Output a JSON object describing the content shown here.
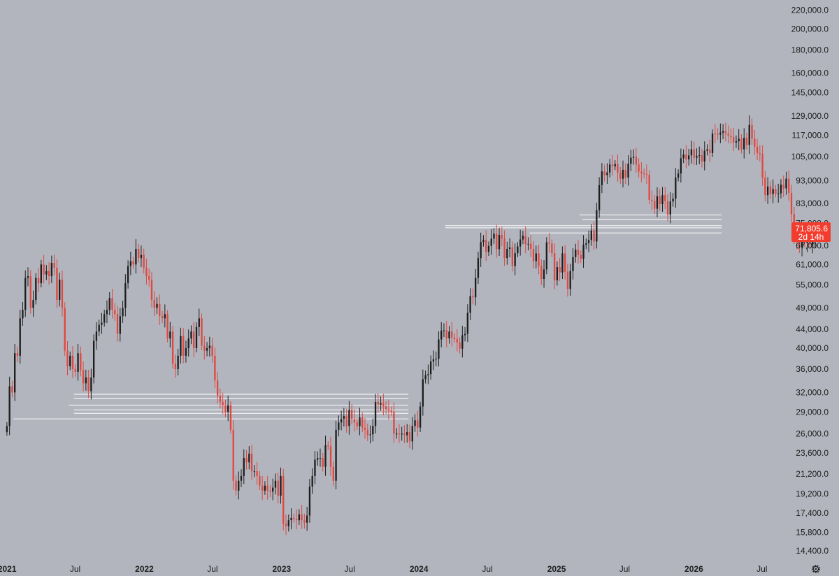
{
  "chart_data": {
    "type": "candlestick",
    "scale": "log",
    "colors": {
      "background": "#b2b5be",
      "up": "#1e1e1e",
      "down": "#e0473f",
      "level_line": "#ffffff",
      "price_tag": "#f23d2e",
      "text": "#1f1f1f"
    },
    "ylim": [
      13800,
      225000
    ],
    "x_range": [
      "2020-12-28",
      "2026-07-20"
    ],
    "y_ticks": [
      {
        "value": 220000,
        "label": "220,000.0"
      },
      {
        "value": 200000,
        "label": "200,000.0"
      },
      {
        "value": 180000,
        "label": "180,000.0"
      },
      {
        "value": 160000,
        "label": "160,000.0"
      },
      {
        "value": 145000,
        "label": "145,000.0"
      },
      {
        "value": 129000,
        "label": "129,000.0"
      },
      {
        "value": 117000,
        "label": "117,000.0"
      },
      {
        "value": 105000,
        "label": "105,000.0"
      },
      {
        "value": 93000,
        "label": "93,000.0"
      },
      {
        "value": 83000,
        "label": "83,000.0"
      },
      {
        "value": 75000,
        "label": "75,000.0"
      },
      {
        "value": 67000,
        "label": "67,000.0"
      },
      {
        "value": 61000,
        "label": "61,000.0"
      },
      {
        "value": 55000,
        "label": "55,000.0"
      },
      {
        "value": 49000,
        "label": "49,000.0"
      },
      {
        "value": 44000,
        "label": "44,000.0"
      },
      {
        "value": 40000,
        "label": "40,000.0"
      },
      {
        "value": 36000,
        "label": "36,000.0"
      },
      {
        "value": 32000,
        "label": "32,000.0"
      },
      {
        "value": 29000,
        "label": "29,000.0"
      },
      {
        "value": 26000,
        "label": "26,000.0"
      },
      {
        "value": 23600,
        "label": "23,600.0"
      },
      {
        "value": 21200,
        "label": "21,200.0"
      },
      {
        "value": 19200,
        "label": "19,200.0"
      },
      {
        "value": 17400,
        "label": "17,400.0"
      },
      {
        "value": 15800,
        "label": "15,800.0"
      },
      {
        "value": 14400,
        "label": "14,400.0"
      }
    ],
    "x_ticks": [
      {
        "date": "2021-01-01",
        "label": "2021",
        "bold": true
      },
      {
        "date": "2021-07-01",
        "label": "Jul",
        "bold": false
      },
      {
        "date": "2022-01-01",
        "label": "2022",
        "bold": true
      },
      {
        "date": "2022-07-01",
        "label": "Jul",
        "bold": false
      },
      {
        "date": "2023-01-01",
        "label": "2023",
        "bold": true
      },
      {
        "date": "2023-07-01",
        "label": "Jul",
        "bold": false
      },
      {
        "date": "2024-01-01",
        "label": "2024",
        "bold": true
      },
      {
        "date": "2024-07-01",
        "label": "Jul",
        "bold": false
      },
      {
        "date": "2025-01-01",
        "label": "2025",
        "bold": true
      },
      {
        "date": "2025-07-01",
        "label": "Jul",
        "bold": false
      },
      {
        "date": "2026-01-01",
        "label": "2026",
        "bold": true
      },
      {
        "date": "2026-07-01",
        "label": "Jul",
        "bold": false
      }
    ],
    "current_price": {
      "value": 71805.6,
      "label": "71,805.6",
      "countdown": "2d 14h"
    },
    "levels": [
      {
        "price": 31700,
        "from": "2021-06-28",
        "to": "2023-12-04"
      },
      {
        "price": 31000,
        "from": "2021-06-28",
        "to": "2023-12-04"
      },
      {
        "price": 30000,
        "from": "2021-06-14",
        "to": "2023-12-04"
      },
      {
        "price": 29300,
        "from": "2021-06-28",
        "to": "2023-12-04"
      },
      {
        "price": 28800,
        "from": "2021-06-28",
        "to": "2023-12-04"
      },
      {
        "price": 28000,
        "from": "2021-01-18",
        "to": "2023-12-04"
      },
      {
        "price": 78300,
        "from": "2025-03-03",
        "to": "2026-03-16"
      },
      {
        "price": 76500,
        "from": "2025-03-10",
        "to": "2026-03-16"
      },
      {
        "price": 74200,
        "from": "2024-03-11",
        "to": "2026-03-16"
      },
      {
        "price": 73400,
        "from": "2024-03-11",
        "to": "2026-03-16"
      },
      {
        "price": 71500,
        "from": "2024-10-21",
        "to": "2026-03-16"
      }
    ],
    "weekly_start": "2020-12-28",
    "weekly_closes": [
      27000,
      33000,
      32000,
      39000,
      38500,
      46500,
      48500,
      57000,
      57500,
      49000,
      51000,
      57000,
      55500,
      61000,
      58000,
      59000,
      57500,
      61500,
      60000,
      51000,
      56500,
      49000,
      39500,
      36500,
      38500,
      36000,
      35500,
      39000,
      35800,
      33500,
      34500,
      32200,
      34500,
      41500,
      43500,
      45000,
      45500,
      47500,
      48500,
      51500,
      48500,
      47500,
      43000,
      47000,
      49000,
      55500,
      60500,
      62000,
      61000,
      66000,
      63000,
      64000,
      60000,
      57500,
      56500,
      51000,
      49000,
      50000,
      47000,
      46500,
      47500,
      42000,
      43500,
      37000,
      36000,
      38500,
      42500,
      38500,
      40000,
      42000,
      43500,
      40000,
      44500,
      46500,
      40500,
      39500,
      40000,
      40500,
      38500,
      34000,
      31500,
      30500,
      30000,
      29000,
      30000,
      26500,
      20500,
      19500,
      20500,
      21000,
      23000,
      22500,
      23500,
      21500,
      21500,
      21000,
      20000,
      19500,
      20000,
      19500,
      19400,
      19800,
      20500,
      19000,
      21000,
      16500,
      16300,
      16800,
      17000,
      16900,
      16800,
      17300,
      16800,
      16600,
      17200,
      19900,
      21000,
      22800,
      23000,
      23000,
      22000,
      24500,
      24400,
      22000,
      20500,
      26500,
      27500,
      28000,
      28400,
      27000,
      29300,
      28000,
      27500,
      27000,
      28200,
      26800,
      26500,
      25800,
      25900,
      27000,
      30500,
      30100,
      30300,
      29800,
      29400,
      29200,
      29000,
      26000,
      26000,
      25900,
      26000,
      25800,
      26200,
      25000,
      27000,
      27800,
      26800,
      29800,
      34200,
      34900,
      35100,
      37400,
      37800,
      37900,
      41800,
      43700,
      43800,
      42000,
      43500,
      42200,
      41900,
      41200,
      39900,
      42700,
      43000,
      47800,
      52000,
      51700,
      57000,
      63000,
      68300,
      69000,
      65000,
      67000,
      69500,
      71200,
      65900,
      70800,
      69500,
      63000,
      66000,
      66500,
      60500,
      64600,
      66800,
      69200,
      70500,
      67500,
      67700,
      66000,
      62000,
      64500,
      60500,
      56700,
      59500,
      68200,
      67800,
      64600,
      56300,
      60200,
      58600,
      64500,
      58800,
      53900,
      59000,
      63300,
      65700,
      64000,
      62800,
      67400,
      67900,
      69000,
      72400,
      68500,
      80200,
      91000,
      97500,
      95700,
      97000,
      101000,
      100000,
      101200,
      97000,
      94000,
      98300,
      94500,
      101400,
      104500,
      105000,
      101000,
      97400,
      96600,
      96200,
      95800,
      84500,
      84000,
      80800,
      86000,
      82700,
      86500,
      84000,
      78400,
      83800,
      85000,
      94500,
      96500,
      104200,
      106200,
      103600,
      105700,
      109000,
      104500,
      105400,
      105800,
      102500,
      108200,
      109000,
      107000,
      118000,
      117700,
      117400,
      118600,
      119500,
      118000,
      116800,
      116000,
      112800,
      113500,
      115000,
      109000,
      115500,
      111400,
      123300,
      115000,
      110500,
      107000,
      106500,
      94500,
      86500,
      90400,
      87000,
      89200,
      87200,
      87300,
      91200,
      89500,
      94000,
      87500,
      78600,
      70000,
      68800,
      66500,
      68700,
      68000,
      70000,
      67500,
      68300,
      71805.6
    ]
  },
  "ui": {
    "settings_icon": "gear-icon"
  }
}
